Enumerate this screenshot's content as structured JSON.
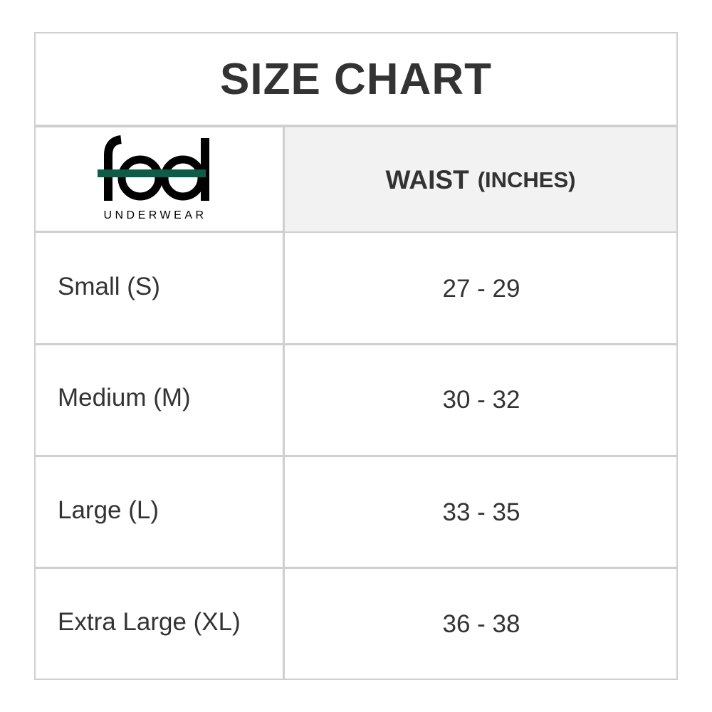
{
  "title": "SIZE CHART",
  "logo": {
    "brand": "feel",
    "tagline": "UNDERWEAR",
    "accent_color": "#0d5c48"
  },
  "header": {
    "measure": "WAIST",
    "unit": "(INCHES)"
  },
  "rows": [
    {
      "size": "Small (S)",
      "waist": "27 - 29"
    },
    {
      "size": "Medium (M)",
      "waist": "30 - 32"
    },
    {
      "size": "Large (L)",
      "waist": "33 - 35"
    },
    {
      "size": "Extra Large (XL)",
      "waist": "36 - 38"
    }
  ]
}
